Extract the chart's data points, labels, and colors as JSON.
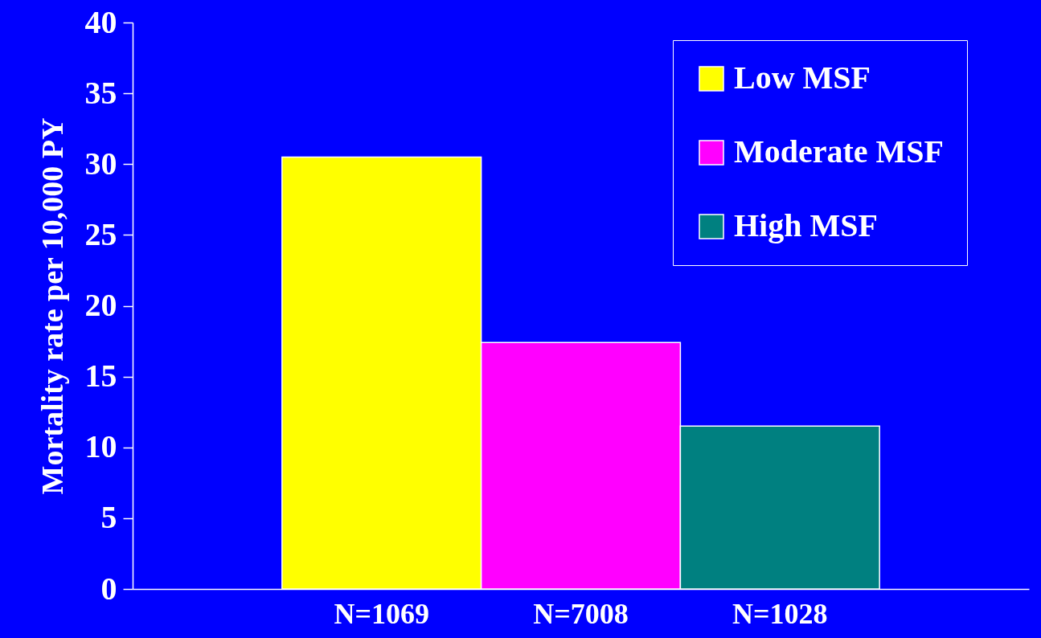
{
  "chart_data": {
    "type": "bar",
    "ylabel": "Mortality rate per 10,000 PY",
    "categories": [
      "N=1069",
      "N=7008",
      "N=1028"
    ],
    "series": [
      {
        "name": "Low MSF",
        "color": "#ffff00",
        "values": [
          30.5,
          null,
          null
        ]
      },
      {
        "name": "Moderate MSF",
        "color": "#ff00ff",
        "values": [
          null,
          17.4,
          null
        ]
      },
      {
        "name": "High MSF",
        "color": "#008080",
        "values": [
          null,
          null,
          11.5
        ]
      }
    ],
    "ylim": [
      0,
      40
    ],
    "yticks": [
      0,
      5,
      10,
      15,
      20,
      25,
      30,
      35,
      40
    ],
    "grid": false,
    "legend": "top right"
  }
}
